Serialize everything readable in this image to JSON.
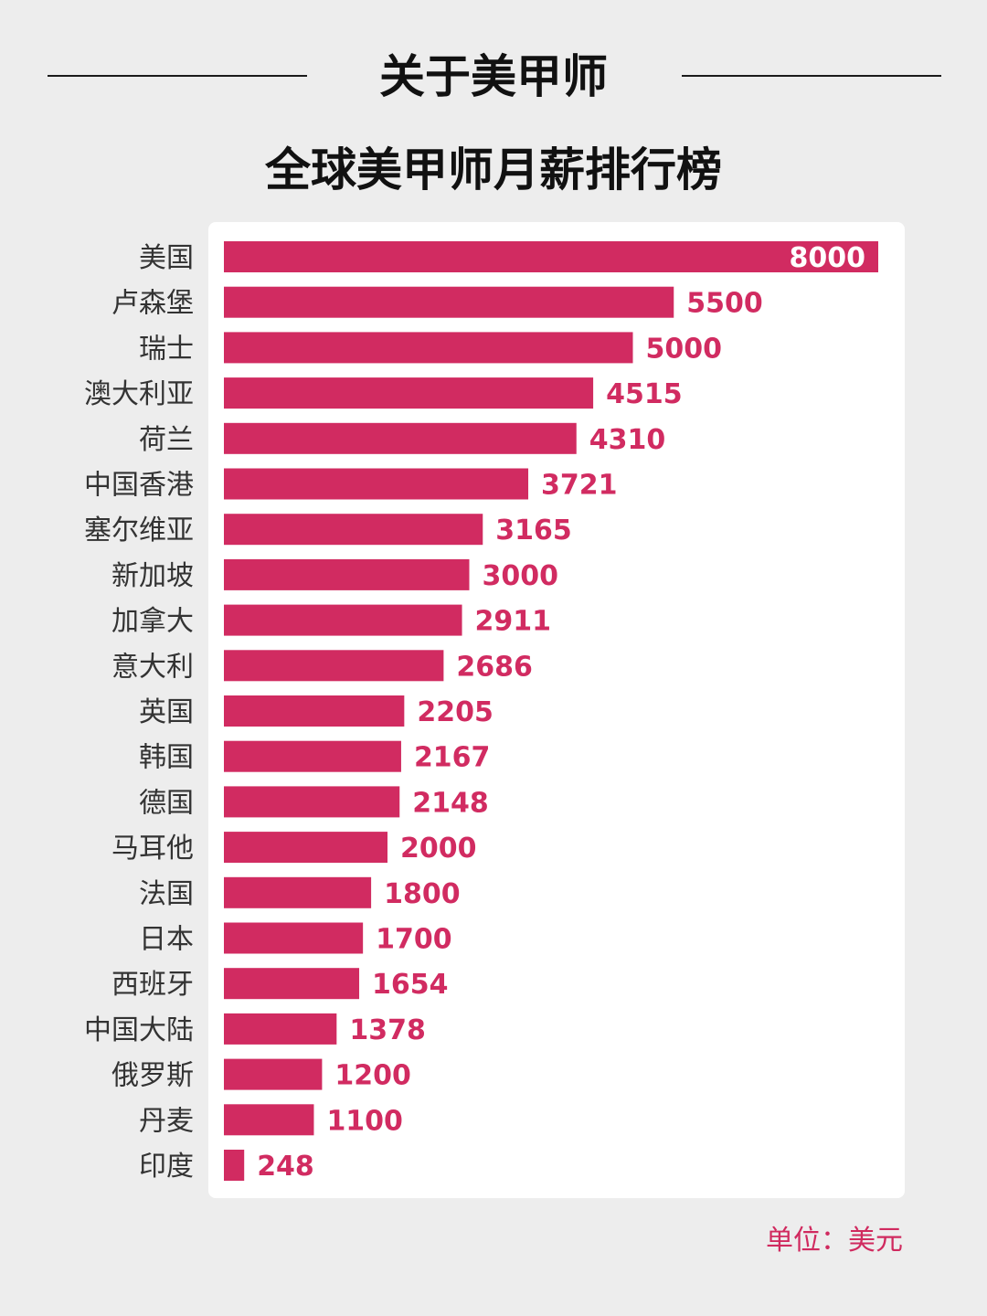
{
  "header": {
    "title": "关于美甲师",
    "subtitle": "全球美甲师月薪排行榜"
  },
  "unit_note": "单位：美元",
  "colors": {
    "bar": "#d12b61",
    "value_outside": "#d12b61",
    "value_inside": "#ffffff",
    "label": "#333333"
  },
  "chart_data": {
    "type": "bar",
    "orientation": "horizontal",
    "categories": [
      "美国",
      "卢森堡",
      "瑞士",
      "澳大利亚",
      "荷兰",
      "中国香港",
      "塞尔维亚",
      "新加坡",
      "加拿大",
      "意大利",
      "英国",
      "韩国",
      "德国",
      "马耳他",
      "法国",
      "日本",
      "西班牙",
      "中国大陆",
      "俄罗斯",
      "丹麦",
      "印度"
    ],
    "values": [
      8000,
      5500,
      5000,
      4515,
      4310,
      3721,
      3165,
      3000,
      2911,
      2686,
      2205,
      2167,
      2148,
      2000,
      1800,
      1700,
      1654,
      1378,
      1200,
      1100,
      248
    ],
    "xlim": [
      0,
      8000
    ],
    "grid": false,
    "legend": "none"
  }
}
